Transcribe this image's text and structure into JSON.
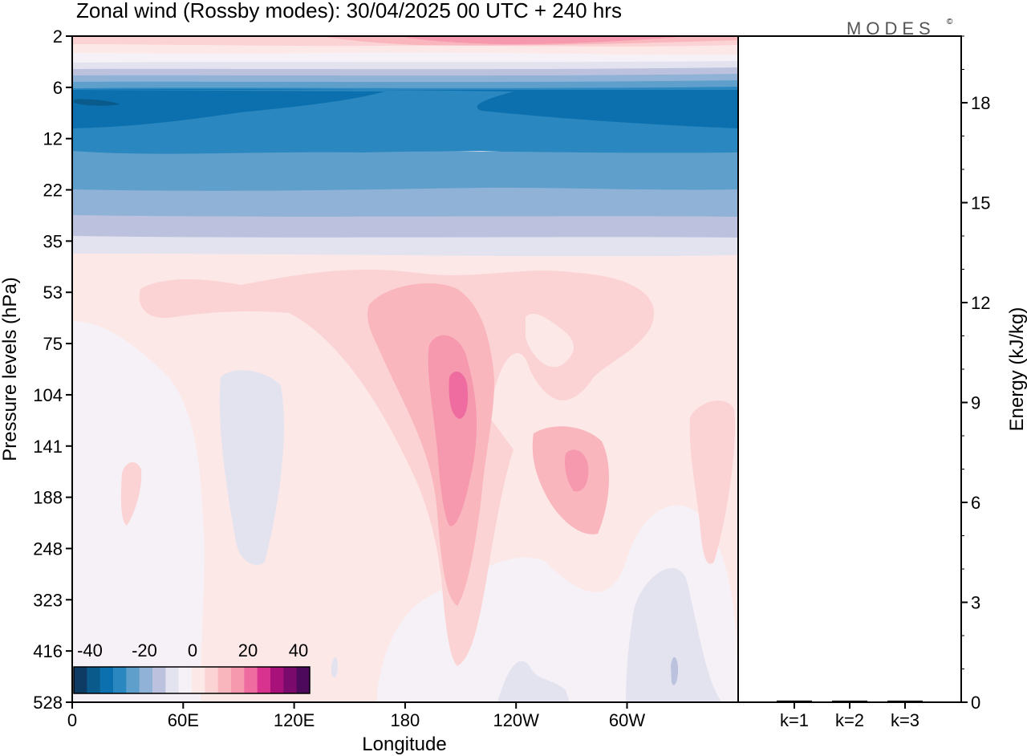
{
  "chart_data": {
    "type": "heatmap",
    "title": "Zonal wind (Rossby modes):  30/04/2025  00 UTC  + 240 hrs",
    "brand": "MODES",
    "brand_mark": "©",
    "left_panel": {
      "xlabel": "Longitude",
      "ylabel": "Pressure levels (hPa)",
      "x_ticks": [
        "0",
        "60E",
        "120E",
        "180",
        "120W",
        "60W"
      ],
      "y_ticks": [
        "2",
        "6",
        "12",
        "22",
        "35",
        "53",
        "75",
        "104",
        "141",
        "188",
        "248",
        "323",
        "416",
        "528"
      ],
      "colorbar": {
        "tick_labels": [
          "-40",
          "-20",
          "0",
          "20",
          "40"
        ],
        "levels": [
          -40,
          -35,
          -30,
          -25,
          -20,
          -15,
          -10,
          -5,
          0,
          5,
          10,
          15,
          20,
          25,
          30,
          35,
          40
        ],
        "colors": [
          "#0d3b63",
          "#0a5a8c",
          "#0b70ad",
          "#2a87bf",
          "#5e9fcc",
          "#8fb2d6",
          "#bcc2de",
          "#e3e3f0",
          "#f6f1f6",
          "#fde8e8",
          "#fcd3d4",
          "#f9b6bd",
          "#f698ae",
          "#ef6ca1",
          "#d8338f",
          "#a8107a",
          "#7a0a6b",
          "#4d0a5c"
        ],
        "location": "bottom-left"
      }
    },
    "right_panel": {
      "ylabel": "Energy (kJ/kg)",
      "y_ticks": [
        "0",
        "3",
        "6",
        "9",
        "12",
        "15",
        "18"
      ],
      "ylim": [
        0,
        20
      ],
      "categories": [
        "k=1",
        "k=2",
        "k=3"
      ],
      "values": [
        0.05,
        0.03,
        0.03
      ]
    }
  }
}
